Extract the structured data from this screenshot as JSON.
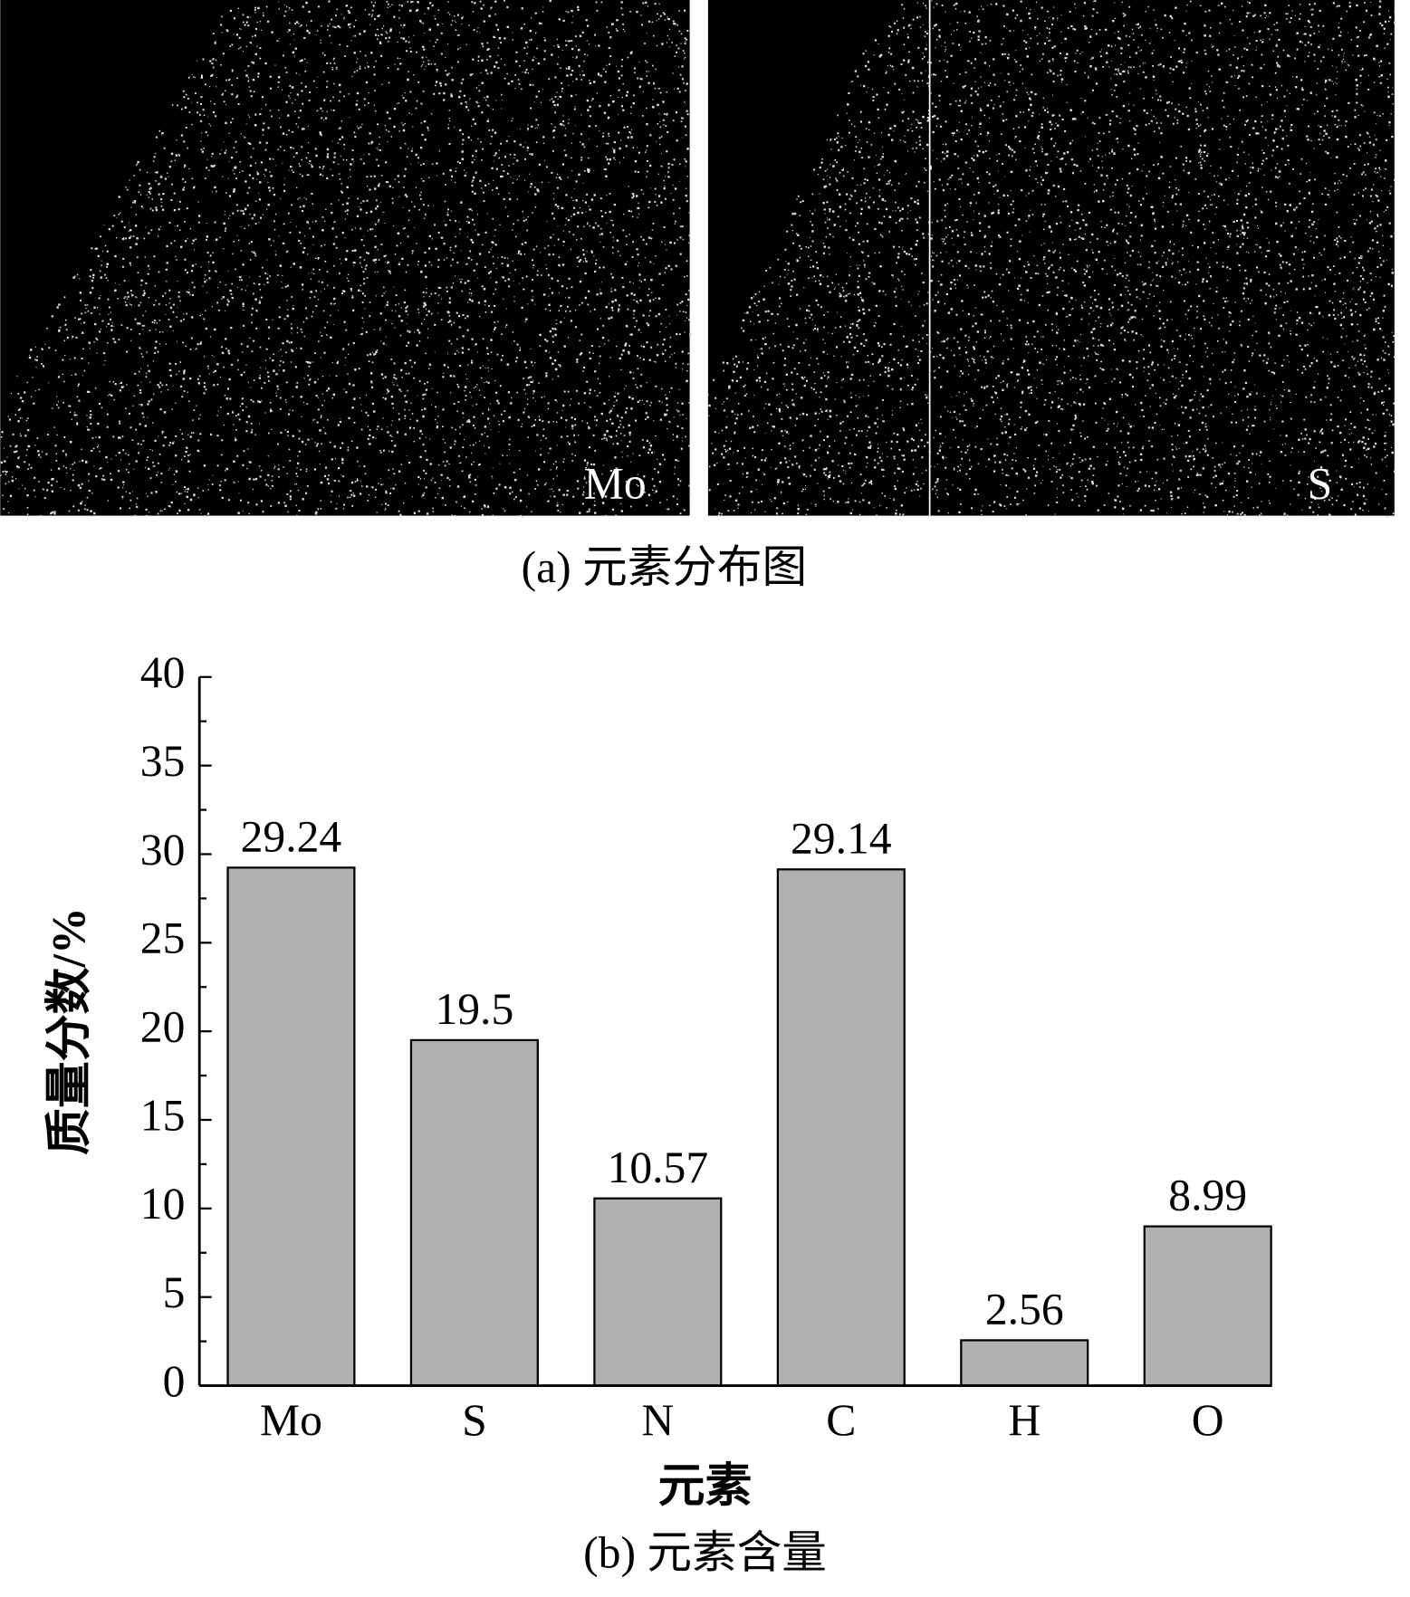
{
  "figure_a": {
    "labels": [
      "Mo",
      "S"
    ],
    "caption": "(a) 元素分布图"
  },
  "chart_data": {
    "type": "bar",
    "caption": "(b) 元素含量",
    "x_label": "元素",
    "y_label": "质量分数/%",
    "categories": [
      "Mo",
      "S",
      "N",
      "C",
      "H",
      "O"
    ],
    "values": [
      29.24,
      19.5,
      10.57,
      29.14,
      2.56,
      8.99
    ],
    "value_labels": [
      "29.24",
      "19.5",
      "10.57",
      "29.14",
      "2.56",
      "8.99"
    ],
    "color": "#b0b0b0",
    "ylim": [
      0,
      40
    ],
    "yticks": [
      0,
      5,
      10,
      15,
      20,
      25,
      30,
      35,
      40
    ],
    "grid": false
  }
}
